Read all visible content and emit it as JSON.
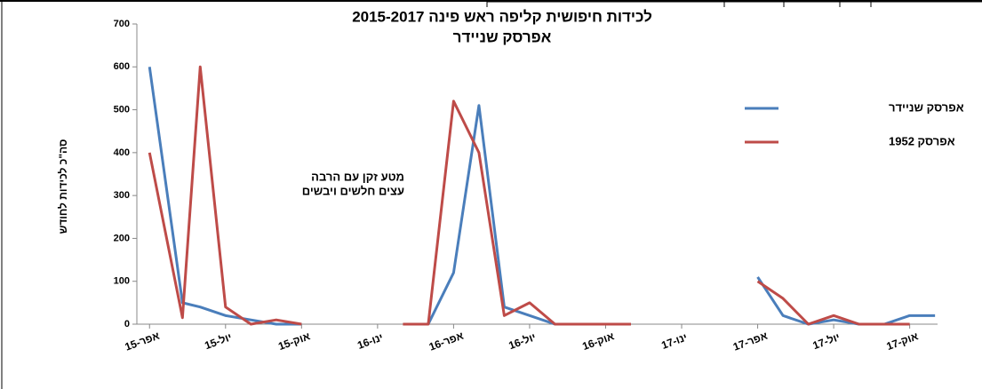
{
  "chart_data": {
    "type": "line",
    "title": "לכידות חיפושית קליפה ראש פינה 2015-2017",
    "subtitle": "אפרסק שניידר",
    "y_label": "סה\"כ לכידות לחודש",
    "annotation": [
      "מטע זקן עם הרבה",
      "עצים חלשים ויבשים"
    ],
    "x": [
      0,
      1.3,
      2,
      3,
      4,
      5,
      6,
      8,
      10,
      11,
      12,
      13,
      14,
      15,
      16,
      17,
      18,
      19,
      22,
      24,
      25,
      26,
      27,
      28,
      29,
      30,
      31
    ],
    "series": [
      {
        "name": "אפרסק שניידר",
        "color": "#4a7ebb",
        "values": [
          600,
          50,
          40,
          20,
          10,
          0,
          0,
          null,
          null,
          0,
          120,
          510,
          40,
          20,
          0,
          0,
          0,
          0,
          null,
          110,
          20,
          0,
          10,
          0,
          0,
          20,
          20
        ]
      },
      {
        "name": "אפרסק 1952",
        "color": "#be4b48",
        "values": [
          400,
          15,
          600,
          40,
          0,
          10,
          0,
          null,
          0,
          0,
          520,
          400,
          20,
          50,
          0,
          0,
          0,
          0,
          null,
          100,
          60,
          0,
          20,
          0,
          0,
          0,
          null
        ]
      }
    ],
    "xlim": [
      -0.5,
      31.1
    ],
    "xticks": [
      {
        "value": 0,
        "label": "אפר-15"
      },
      {
        "value": 3,
        "label": "יול-15"
      },
      {
        "value": 6,
        "label": "אוק-15"
      },
      {
        "value": 9,
        "label": "ינו-16"
      },
      {
        "value": 12,
        "label": "אפר-16"
      },
      {
        "value": 15,
        "label": "יול-16"
      },
      {
        "value": 18,
        "label": "אוק-16"
      },
      {
        "value": 21,
        "label": "ינו-17"
      },
      {
        "value": 24,
        "label": "אפר-17"
      },
      {
        "value": 27,
        "label": "יול-17"
      },
      {
        "value": 30,
        "label": "אוק-17"
      }
    ],
    "ylim": [
      0,
      700
    ],
    "yticks": [
      0,
      100,
      200,
      300,
      400,
      500,
      600,
      700
    ],
    "legend": "right",
    "grid": false
  }
}
